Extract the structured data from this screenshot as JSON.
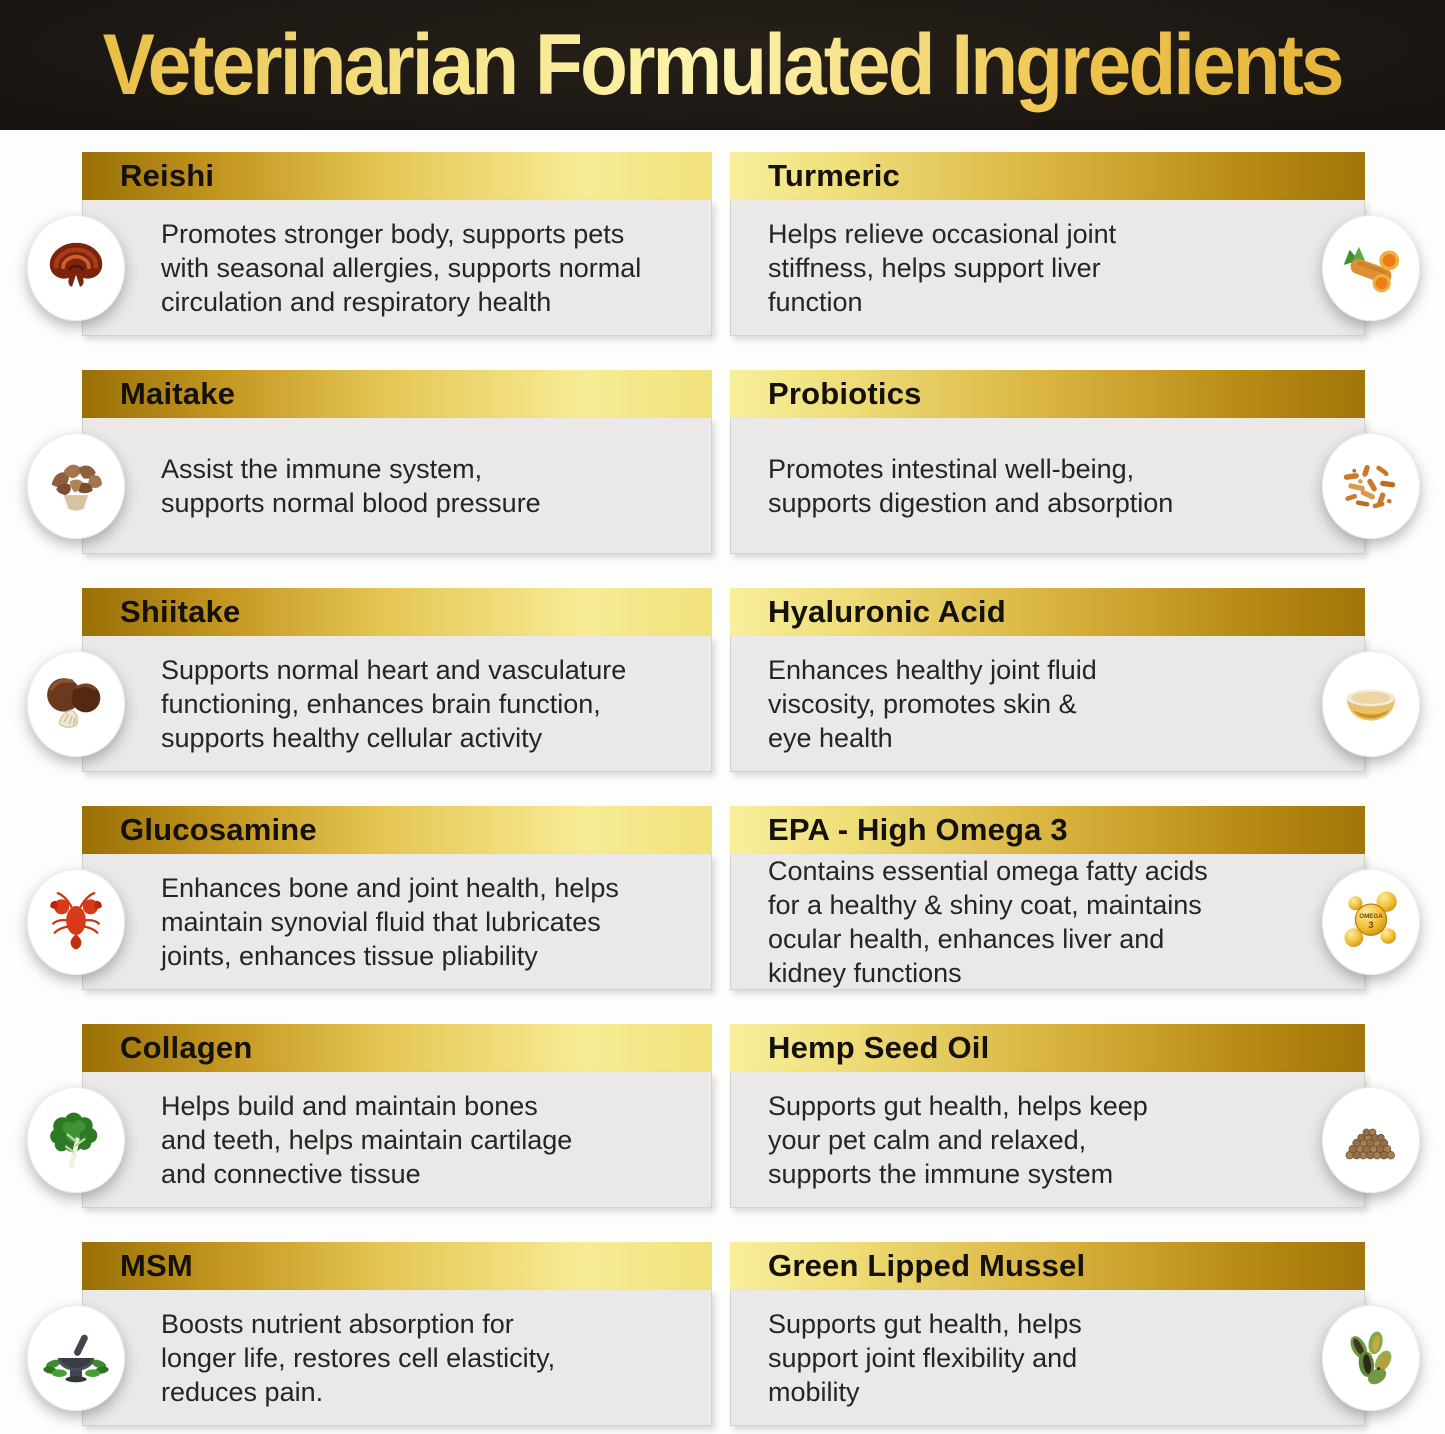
{
  "title": "Veterinarian Formulated Ingredients",
  "colors": {
    "banner_background": "#171310",
    "title_gold": "#f0d66e",
    "header_gold_dark": "#9a7007",
    "header_gold_light": "#f8ef9d",
    "card_body_gray": "#eae9e7",
    "text_dark": "#262522"
  },
  "cards": [
    {
      "name": "Reishi",
      "icon": "reishi",
      "description": "Promotes stronger body, supports pets\nwith seasonal allergies, supports normal\ncirculation and respiratory health"
    },
    {
      "name": "Turmeric",
      "icon": "turmeric",
      "description": "Helps relieve occasional joint\nstiffness, helps support liver\nfunction"
    },
    {
      "name": "Maitake",
      "icon": "maitake",
      "description": "Assist the immune system,\nsupports normal blood pressure"
    },
    {
      "name": "Probiotics",
      "icon": "probiotics",
      "description": "Promotes intestinal well-being,\nsupports digestion and absorption"
    },
    {
      "name": "Shiitake",
      "icon": "shiitake",
      "description": "Supports normal heart and vasculature\nfunctioning, enhances brain function,\nsupports healthy cellular activity"
    },
    {
      "name": "Hyaluronic Acid",
      "icon": "hyaluronic-acid",
      "description": "Enhances healthy joint fluid\nviscosity, promotes skin &\neye health"
    },
    {
      "name": "Glucosamine",
      "icon": "glucosamine",
      "description": "Enhances bone and joint health, helps\nmaintain synovial fluid that lubricates\njoints, enhances tissue pliability"
    },
    {
      "name": "EPA - High Omega 3",
      "icon": "omega-3",
      "description": "Contains essential omega fatty acids\nfor a healthy & shiny coat, maintains\nocular health, enhances liver and\nkidney functions"
    },
    {
      "name": "Collagen",
      "icon": "collagen",
      "description": "Helps build and maintain bones\nand teeth, helps maintain cartilage\nand connective tissue"
    },
    {
      "name": "Hemp Seed Oil",
      "icon": "hemp-seed",
      "description": "Supports gut health, helps keep\nyour pet calm and relaxed,\nsupports the immune system"
    },
    {
      "name": "MSM",
      "icon": "msm",
      "description": "Boosts nutrient absorption for\nlonger life, restores cell elasticity,\nreduces pain."
    },
    {
      "name": "Green Lipped Mussel",
      "icon": "green-lipped-mussel",
      "description": "Supports gut health, helps\nsupport joint flexibility and\nmobility"
    }
  ]
}
